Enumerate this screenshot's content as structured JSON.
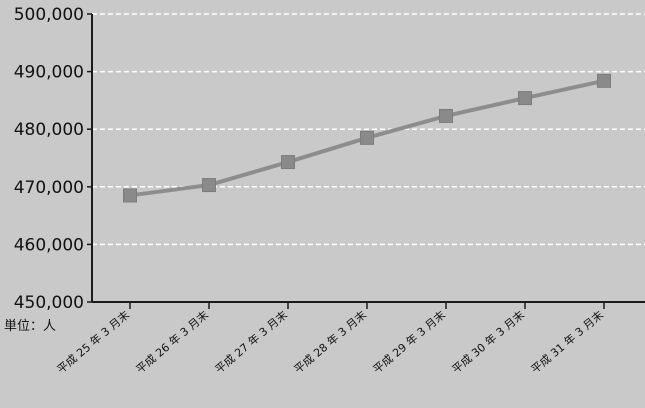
{
  "chart_data": {
    "type": "line",
    "categories": [
      "平成 25 年 3 月末",
      "平成 26 年 3 月末",
      "平成 27 年 3 月末",
      "平成 28 年 3 月末",
      "平成 29 年 3 月末",
      "平成 30 年 3 月末",
      "平成 31 年 3 月末"
    ],
    "series": [
      {
        "values": [
          468500,
          470300,
          474300,
          478500,
          482300,
          485400,
          488400
        ]
      }
    ],
    "y_ticks": [
      "500,000",
      "490,000",
      "480,000",
      "470,000",
      "460,000",
      "450,000"
    ],
    "ylim": [
      450000,
      500000
    ],
    "ylabel": "",
    "xlabel": "",
    "unit_label": "単位：人",
    "grid": true,
    "colors": {
      "line": "#8d8d8d",
      "marker": "#8a8a8a",
      "background": "#c9c9c9",
      "grid": "#ffffff",
      "axis": "#1a1a1a"
    }
  }
}
